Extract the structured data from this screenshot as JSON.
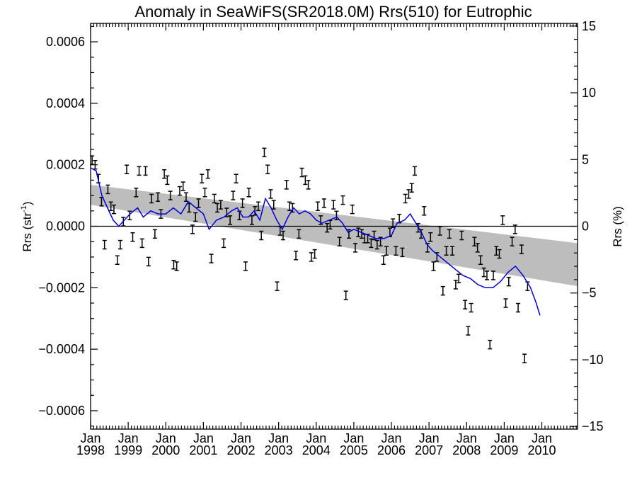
{
  "chart_data": {
    "type": "scatter",
    "title": "Anomaly in SeaWiFS(SR2018.0M) Rrs(510) for Eutrophic",
    "xlabel": "",
    "ylabel_left": "Rrs (str",
    "ylabel_left_sup": "-1",
    "ylabel_left_close": ")",
    "ylabel_right": "Rrs (%)",
    "xlim": [
      1998.0,
      2010.95
    ],
    "ylim_left": [
      -0.00066,
      0.00066
    ],
    "ylim_right": [
      -15.2,
      15.2
    ],
    "left_ticks": [
      {
        "value": 0.0006,
        "label": "0.0006"
      },
      {
        "value": 0.0004,
        "label": "0.0004"
      },
      {
        "value": 0.0002,
        "label": "0.0002"
      },
      {
        "value": 0.0,
        "label": "0.0000"
      },
      {
        "value": -0.0002,
        "label": "−0.0002"
      },
      {
        "value": -0.0004,
        "label": "−0.0004"
      },
      {
        "value": -0.0006,
        "label": "−0.0006"
      }
    ],
    "right_ticks": [
      {
        "value": 15,
        "label": "15"
      },
      {
        "value": 10,
        "label": "10"
      },
      {
        "value": 5,
        "label": "5"
      },
      {
        "value": 0,
        "label": "0"
      },
      {
        "value": -5,
        "label": "−5"
      },
      {
        "value": -10,
        "label": "−10"
      },
      {
        "value": -15,
        "label": "−15"
      }
    ],
    "x_ticks": [
      {
        "value": 1998,
        "month": "Jan",
        "year": "1998"
      },
      {
        "value": 1999,
        "month": "Jan",
        "year": "1999"
      },
      {
        "value": 2000,
        "month": "Jan",
        "year": "2000"
      },
      {
        "value": 2001,
        "month": "Jan",
        "year": "2001"
      },
      {
        "value": 2002,
        "month": "Jan",
        "year": "2002"
      },
      {
        "value": 2003,
        "month": "Jan",
        "year": "2003"
      },
      {
        "value": 2004,
        "month": "Jan",
        "year": "2004"
      },
      {
        "value": 2005,
        "month": "Jan",
        "year": "2005"
      },
      {
        "value": 2006,
        "month": "Jan",
        "year": "2006"
      },
      {
        "value": 2007,
        "month": "Jan",
        "year": "2007"
      },
      {
        "value": 2008,
        "month": "Jan",
        "year": "2008"
      },
      {
        "value": 2009,
        "month": "Jan",
        "year": "2009"
      },
      {
        "value": 2010,
        "month": "Jan",
        "year": "2010"
      }
    ],
    "zero_line": true,
    "trend_band": {
      "color": "#bdbdbd",
      "upper": [
        [
          1998.0,
          0.000135
        ],
        [
          2010.95,
          -5.5e-05
        ]
      ],
      "lower": [
        [
          1998.0,
          7e-05
        ],
        [
          2010.95,
          -0.000195
        ]
      ]
    },
    "points": [
      [
        1998.04,
        0.000215
      ],
      [
        1998.12,
        0.0002
      ],
      [
        1998.21,
        0.000155
      ],
      [
        1998.29,
        8e-05
      ],
      [
        1998.37,
        -6e-05
      ],
      [
        1998.46,
        0.00012
      ],
      [
        1998.54,
        6.5e-05
      ],
      [
        1998.62,
        5.5e-05
      ],
      [
        1998.71,
        -0.00011
      ],
      [
        1998.79,
        -6e-05
      ],
      [
        1998.87,
        1.5e-05
      ],
      [
        1998.96,
        0.000185
      ],
      [
        1999.04,
        3.5e-05
      ],
      [
        1999.12,
        -3.5e-05
      ],
      [
        1999.21,
        0.00011
      ],
      [
        1999.29,
        0.00018
      ],
      [
        1999.37,
        -5.5e-05
      ],
      [
        1999.46,
        0.00018
      ],
      [
        1999.54,
        -0.000115
      ],
      [
        1999.62,
        9e-05
      ],
      [
        1999.71,
        -2.5e-05
      ],
      [
        1999.79,
        9.5e-05
      ],
      [
        1999.87,
        4e-05
      ],
      [
        1999.96,
        0.00017
      ],
      [
        2000.04,
        0.00015
      ],
      [
        2000.12,
        0.0001
      ],
      [
        2000.21,
        -0.000125
      ],
      [
        2000.29,
        -0.00013
      ],
      [
        2000.37,
        0.000115
      ],
      [
        2000.46,
        0.00013
      ],
      [
        2000.54,
        9.5e-05
      ],
      [
        2000.62,
        6e-05
      ],
      [
        2000.71,
        -1e-05
      ],
      [
        2000.79,
        3e-05
      ],
      [
        2000.87,
        7.5e-05
      ],
      [
        2000.96,
        0.000155
      ],
      [
        2001.04,
        0.00011
      ],
      [
        2001.12,
        0.00017
      ],
      [
        2001.21,
        -0.000105
      ],
      [
        2001.29,
        9e-05
      ],
      [
        2001.37,
        6e-05
      ],
      [
        2001.46,
        7e-05
      ],
      [
        2001.54,
        -5.5e-05
      ],
      [
        2001.62,
        4.5e-05
      ],
      [
        2001.71,
        2e-05
      ],
      [
        2001.79,
        0.0001
      ],
      [
        2001.87,
        0.000155
      ],
      [
        2001.96,
        3.5e-05
      ],
      [
        2002.04,
        7.5e-05
      ],
      [
        2002.12,
        -0.00013
      ],
      [
        2002.21,
        0.00011
      ],
      [
        2002.29,
        2e-05
      ],
      [
        2002.37,
        5e-05
      ],
      [
        2002.46,
        6.5e-05
      ],
      [
        2002.54,
        -3e-05
      ],
      [
        2002.62,
        0.00024
      ],
      [
        2002.71,
        0.000185
      ],
      [
        2002.79,
        0.000105
      ],
      [
        2002.87,
        7e-05
      ],
      [
        2002.96,
        -0.000195
      ],
      [
        2003.04,
        -1.5e-05
      ],
      [
        2003.12,
        -3e-05
      ],
      [
        2003.21,
        0.000135
      ],
      [
        2003.29,
        6.5e-05
      ],
      [
        2003.37,
        6e-05
      ],
      [
        2003.46,
        -9.5e-05
      ],
      [
        2003.54,
        -2.5e-05
      ],
      [
        2003.62,
        0.000175
      ],
      [
        2003.71,
        0.00015
      ],
      [
        2003.79,
        0.000135
      ],
      [
        2003.87,
        -0.0001
      ],
      [
        2003.96,
        -9e-05
      ],
      [
        2004.04,
        6.5e-05
      ],
      [
        2004.12,
        2e-05
      ],
      [
        2004.21,
        7.5e-05
      ],
      [
        2004.29,
        -5e-06
      ],
      [
        2004.37,
        5e-06
      ],
      [
        2004.46,
        7e-05
      ],
      [
        2004.54,
        3.5e-05
      ],
      [
        2004.62,
        -5e-05
      ],
      [
        2004.71,
        8.5e-05
      ],
      [
        2004.79,
        -0.000225
      ],
      [
        2004.87,
        -2.5e-05
      ],
      [
        2004.96,
        5.5e-05
      ],
      [
        2005.04,
        -7e-05
      ],
      [
        2005.12,
        -2e-05
      ],
      [
        2005.21,
        -2.5e-05
      ],
      [
        2005.29,
        -4e-05
      ],
      [
        2005.37,
        -4e-05
      ],
      [
        2005.46,
        -5.5e-05
      ],
      [
        2005.54,
        -3e-05
      ],
      [
        2005.62,
        -6e-05
      ],
      [
        2005.71,
        -5e-05
      ],
      [
        2005.79,
        -0.00011
      ],
      [
        2005.87,
        -8e-05
      ],
      [
        2005.96,
        -2e-05
      ],
      [
        2006.04,
        1e-05
      ],
      [
        2006.12,
        -8e-05
      ],
      [
        2006.21,
        2.5e-05
      ],
      [
        2006.29,
        -8.5e-05
      ],
      [
        2006.37,
        9e-05
      ],
      [
        2006.46,
        0.000105
      ],
      [
        2006.54,
        0.000125
      ],
      [
        2006.62,
        0.00018
      ],
      [
        2006.71,
        -5e-06
      ],
      [
        2006.79,
        -2.5e-05
      ],
      [
        2006.87,
        5e-05
      ],
      [
        2006.96,
        -7e-05
      ],
      [
        2007.04,
        -3.5e-05
      ],
      [
        2007.12,
        -0.00013
      ],
      [
        2007.21,
        -0.0001
      ],
      [
        2007.29,
        -1.5e-05
      ],
      [
        2007.37,
        -0.00021
      ],
      [
        2007.46,
        -8e-05
      ],
      [
        2007.54,
        -2.5e-05
      ],
      [
        2007.62,
        -8e-05
      ],
      [
        2007.71,
        -0.00019
      ],
      [
        2007.79,
        -0.00017
      ],
      [
        2007.87,
        -3e-05
      ],
      [
        2007.96,
        -0.000255
      ],
      [
        2008.04,
        -0.00034
      ],
      [
        2008.12,
        -0.000265
      ],
      [
        2008.21,
        -5e-05
      ],
      [
        2008.29,
        -7e-05
      ],
      [
        2008.37,
        -0.00011
      ],
      [
        2008.46,
        -0.00015
      ],
      [
        2008.54,
        -0.00016
      ],
      [
        2008.62,
        -0.000385
      ],
      [
        2008.71,
        -0.00016
      ],
      [
        2008.79,
        -8e-05
      ],
      [
        2008.87,
        -9e-05
      ],
      [
        2008.96,
        2e-05
      ],
      [
        2009.04,
        -0.00025
      ],
      [
        2009.12,
        -0.00018
      ],
      [
        2009.21,
        -5e-05
      ],
      [
        2009.29,
        -1e-05
      ],
      [
        2009.37,
        -0.000265
      ],
      [
        2009.46,
        -7.5e-05
      ],
      [
        2009.54,
        -0.00043
      ],
      [
        2009.62,
        -0.000195
      ]
    ],
    "moving_mean": {
      "color": "#0000dd",
      "points": [
        [
          1998.0,
          0.00019
        ],
        [
          1998.15,
          0.00018
        ],
        [
          1998.3,
          0.0001
        ],
        [
          1998.45,
          6e-05
        ],
        [
          1998.6,
          2e-05
        ],
        [
          1998.75,
          0.0
        ],
        [
          1998.9,
          2e-05
        ],
        [
          1999.05,
          4e-05
        ],
        [
          1999.25,
          6e-05
        ],
        [
          1999.4,
          3e-05
        ],
        [
          1999.6,
          5e-05
        ],
        [
          1999.8,
          4e-05
        ],
        [
          2000.0,
          4e-05
        ],
        [
          2000.2,
          6e-05
        ],
        [
          2000.4,
          4e-05
        ],
        [
          2000.6,
          8e-05
        ],
        [
          2000.8,
          6e-05
        ],
        [
          2001.0,
          4e-05
        ],
        [
          2001.15,
          -1e-05
        ],
        [
          2001.35,
          2e-05
        ],
        [
          2001.55,
          3e-05
        ],
        [
          2001.75,
          5e-05
        ],
        [
          2001.9,
          6e-05
        ],
        [
          2002.05,
          3e-05
        ],
        [
          2002.2,
          3e-05
        ],
        [
          2002.35,
          5e-05
        ],
        [
          2002.5,
          2e-05
        ],
        [
          2002.65,
          9e-05
        ],
        [
          2002.8,
          6e-05
        ],
        [
          2002.95,
          2e-05
        ],
        [
          2003.1,
          -1e-05
        ],
        [
          2003.25,
          3e-05
        ],
        [
          2003.4,
          6e-05
        ],
        [
          2003.55,
          4e-05
        ],
        [
          2003.7,
          5e-05
        ],
        [
          2003.85,
          4e-05
        ],
        [
          2004.0,
          2e-05
        ],
        [
          2004.15,
          1e-05
        ],
        [
          2004.35,
          2e-05
        ],
        [
          2004.55,
          3e-05
        ],
        [
          2004.7,
          1e-05
        ],
        [
          2004.85,
          -2e-05
        ],
        [
          2005.0,
          -1e-05
        ],
        [
          2005.2,
          -2e-05
        ],
        [
          2005.4,
          -3e-05
        ],
        [
          2005.6,
          -4e-05
        ],
        [
          2005.8,
          -4e-05
        ],
        [
          2006.0,
          -3e-05
        ],
        [
          2006.15,
          1e-05
        ],
        [
          2006.35,
          2e-05
        ],
        [
          2006.5,
          4e-05
        ],
        [
          2006.65,
          1e-05
        ],
        [
          2006.8,
          -2e-05
        ],
        [
          2006.95,
          -6e-05
        ],
        [
          2007.1,
          -8e-05
        ],
        [
          2007.3,
          -0.0001
        ],
        [
          2007.5,
          -0.00012
        ],
        [
          2007.7,
          -0.00014
        ],
        [
          2007.9,
          -0.00016
        ],
        [
          2008.1,
          -0.00017
        ],
        [
          2008.3,
          -0.00019
        ],
        [
          2008.5,
          -0.0002
        ],
        [
          2008.7,
          -0.0002
        ],
        [
          2008.9,
          -0.00018
        ],
        [
          2009.1,
          -0.00015
        ],
        [
          2009.3,
          -0.00013
        ],
        [
          2009.5,
          -0.00016
        ],
        [
          2009.7,
          -0.0002
        ],
        [
          2009.85,
          -0.00025
        ],
        [
          2009.95,
          -0.00029
        ]
      ]
    }
  }
}
